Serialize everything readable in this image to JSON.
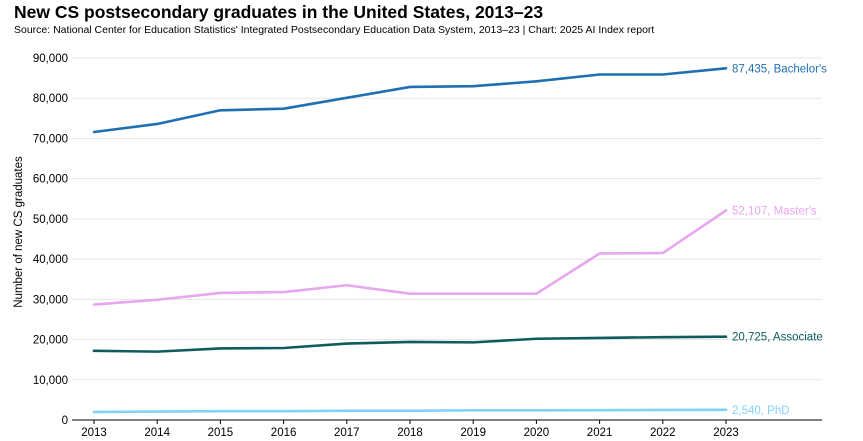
{
  "title": "New CS postsecondary graduates in the United States, 2013–23",
  "subtitle": "Source: National Center for Education Statistics' Integrated Postsecondary Education Data System, 2013–23 | Chart: 2025 AI Index report",
  "chart_data": {
    "type": "line",
    "title": "New CS postsecondary graduates in the United States, 2013–23",
    "xlabel": "",
    "ylabel": "Number of new CS graduates",
    "x": [
      2013,
      2014,
      2015,
      2016,
      2017,
      2018,
      2019,
      2020,
      2021,
      2022,
      2023
    ],
    "x_tick_labels": [
      "2013",
      "2014",
      "2015",
      "2016",
      "2017",
      "2018",
      "2019",
      "2020",
      "2021",
      "2022",
      "2023"
    ],
    "ylim": [
      0,
      90000
    ],
    "y_ticks": [
      0,
      10000,
      20000,
      30000,
      40000,
      50000,
      60000,
      70000,
      80000,
      90000
    ],
    "y_tick_labels": [
      "0",
      "10,000",
      "20,000",
      "30,000",
      "40,000",
      "50,000",
      "60,000",
      "70,000",
      "80,000",
      "90,000"
    ],
    "grid": "horizontal",
    "series": [
      {
        "name": "Bachelor's",
        "color": "#1f6fb2",
        "end_label": "87,435, Bachelor's",
        "values": [
          71600,
          73600,
          77000,
          77400,
          80100,
          82800,
          83000,
          84200,
          85900,
          85900,
          87435
        ]
      },
      {
        "name": "Master's",
        "color": "#e8a6f0",
        "end_label": "52,107, Master's",
        "values": [
          28700,
          29900,
          31600,
          31800,
          33500,
          31400,
          31400,
          31400,
          41400,
          41500,
          52107
        ]
      },
      {
        "name": "Associate",
        "color": "#0f5c5c",
        "end_label": "20,725, Associate",
        "values": [
          17200,
          17000,
          17800,
          17900,
          19000,
          19400,
          19300,
          20200,
          20400,
          20600,
          20725
        ]
      },
      {
        "name": "PhD",
        "color": "#7fd3f7",
        "end_label": "2,540, PhD",
        "values": [
          2000,
          2100,
          2200,
          2200,
          2300,
          2300,
          2400,
          2400,
          2450,
          2500,
          2540
        ]
      }
    ]
  }
}
